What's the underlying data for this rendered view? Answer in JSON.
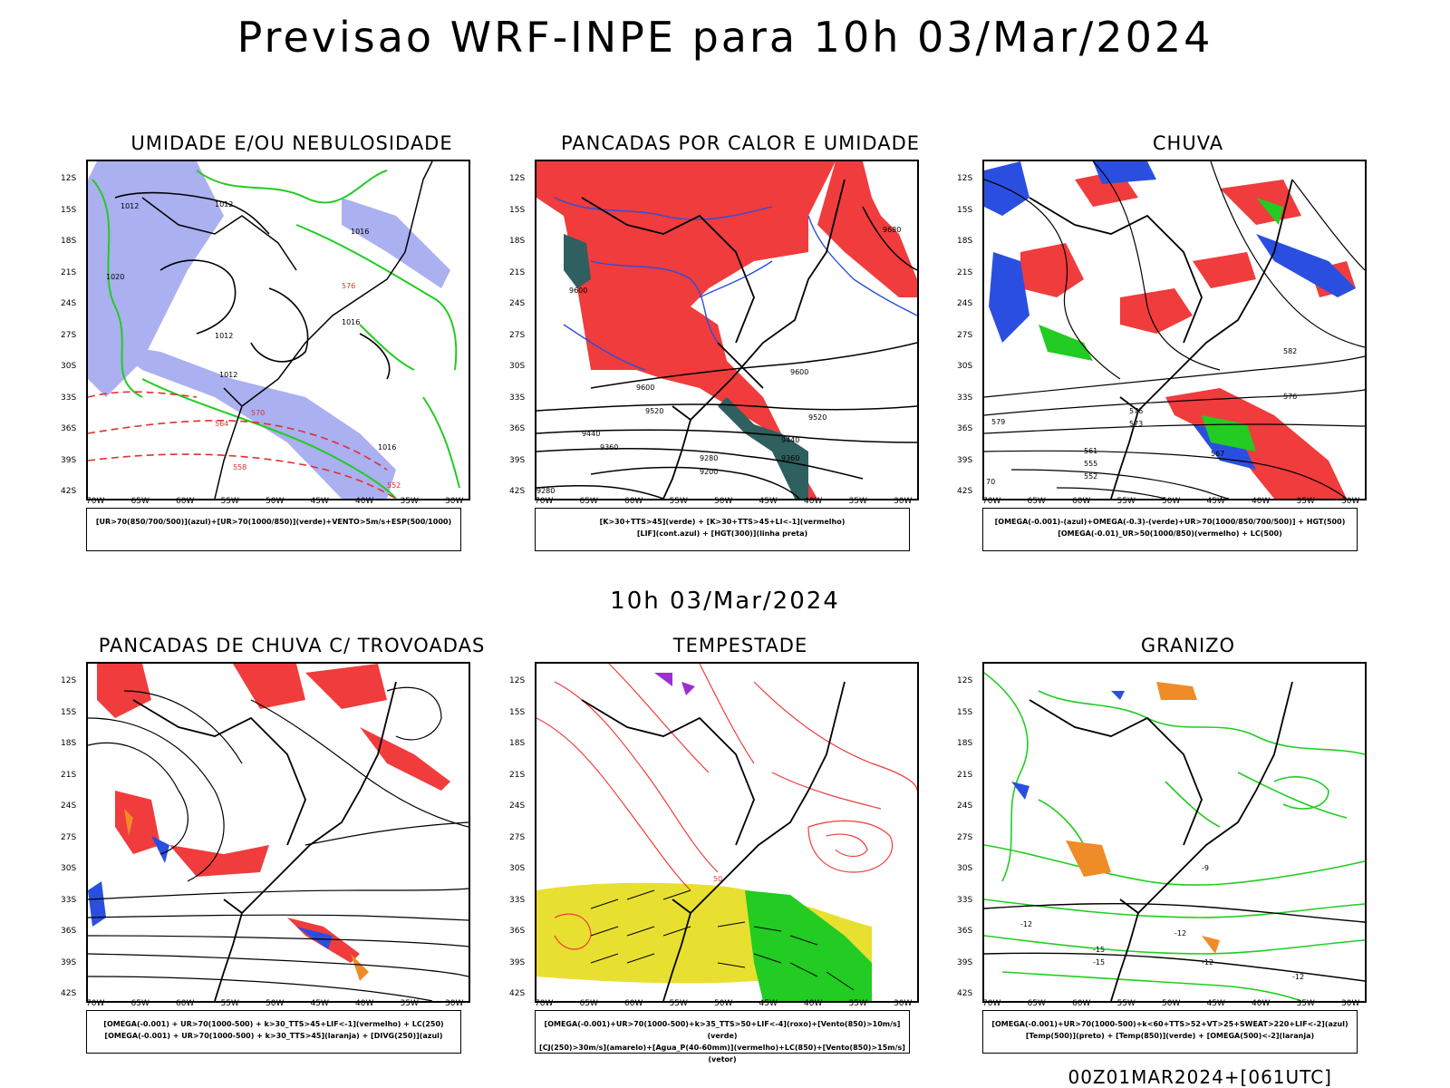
{
  "title": "Previsao WRF-INPE  para 10h 03/Mar/2024",
  "mid_date": "10h 03/Mar/2024",
  "footer": "00Z01MAR2024+[061UTC]",
  "lat_labels": [
    "12S",
    "15S",
    "18S",
    "21S",
    "24S",
    "27S",
    "30S",
    "33S",
    "36S",
    "39S",
    "42S"
  ],
  "lon_labels": [
    "70W",
    "65W",
    "60W",
    "55W",
    "50W",
    "45W",
    "40W",
    "35W",
    "30W"
  ],
  "colors": {
    "humidity_blue": "#aab0f0",
    "humidity_green": "#22cc22",
    "red": "#f03c3c",
    "blue": "#2a4fe0",
    "dark_teal": "#2f5f5f",
    "yellow": "#e8e030",
    "orange": "#f08c28",
    "purple": "#9c2fd0"
  },
  "panels": [
    {
      "title": "UMIDADE E/OU NEBULOSIDADE",
      "legend": [
        "[UR>70(850/700/500)](azul)+[UR>70(1000/850)](verde)+VENTO>5m/s+ESP(500/1000)"
      ],
      "contour_labels": [
        "1012",
        "1012",
        "1016",
        "1020",
        "1012",
        "1016",
        "1012",
        "1016",
        "576",
        "570",
        "564",
        "558",
        "552"
      ]
    },
    {
      "title": "PANCADAS POR CALOR E UMIDADE",
      "legend": [
        "[K>30+TTS>45](verde) + [K>30+TTS>45+LI<-1](vermelho)",
        "[LIF](cont.azul) + [HGT(300)](linha preta)"
      ],
      "contour_labels": [
        "9680",
        "9600",
        "9600",
        "9600",
        "9520",
        "9520",
        "9440",
        "9440",
        "9360",
        "9360",
        "9280",
        "9280",
        "9200"
      ]
    },
    {
      "title": "CHUVA",
      "legend": [
        "[OMEGA(-0.001)-(azul)+OMEGA(-0.3)-(verde)+UR>70(1000/850/700/500)] + HGT(500)",
        "[OMEGA(-0.01)_UR>50(1000/850)(vermelho) + LC(500)"
      ],
      "contour_labels": [
        "582",
        "576",
        "576",
        "573",
        "567",
        "561",
        "555",
        "552",
        "579",
        "70"
      ]
    },
    {
      "title": "PANCADAS DE CHUVA C/ TROVOADAS",
      "legend": [
        "[OMEGA(-0.001) + UR>70(1000-500) + k>30_TTS>45+LIF<-1](vermelho) + LC(250)",
        "[OMEGA(-0.001) + UR>70(1000-500) + k>30_TTS>45](laranja) + [DIVG(250)](azul)"
      ],
      "contour_labels": []
    },
    {
      "title": "TEMPESTADE",
      "legend": [
        "[OMEGA(-0.001)+UR>70(1000-500)+k>35_TTS>50+LIF<-4](roxo)+[Vento(850)>10m/s](verde)",
        "[CJ(250)>30m/s](amarelo)+[Agua_P(40-60mm)](vermelho)+LC(850)+[Vento(850)>15m/s](vetor)"
      ],
      "contour_labels": [
        "50"
      ]
    },
    {
      "title": "GRANIZO",
      "legend": [
        "[OMEGA(-0.001)+UR>70(1000-500)+k<60+TTS>52+VT>25+SWEAT>220+LIF<-2](azul)",
        "[Temp(500)](preto) + [Temp(850)](verde) + [OMEGA(500)<-2](laranja)"
      ],
      "contour_labels": [
        "-12",
        "-12",
        "-12",
        "-15",
        "-15",
        "-12",
        "-9"
      ]
    }
  ]
}
